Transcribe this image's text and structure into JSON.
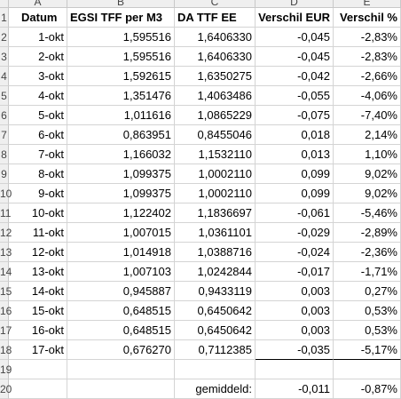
{
  "column_letters": [
    "A",
    "B",
    "C",
    "D",
    "E"
  ],
  "row_numbers": [
    "1",
    "2",
    "3",
    "4",
    "5",
    "6",
    "7",
    "8",
    "9",
    "10",
    "11",
    "12",
    "13",
    "14",
    "15",
    "16",
    "17",
    "18",
    "19",
    "20"
  ],
  "headers": {
    "datum": "Datum",
    "egsi": "EGSI TFF per M3",
    "da": "DA TTF EE",
    "eur": "Verschil EUR",
    "pct": "Verschil %"
  },
  "rows": [
    {
      "datum": "1-okt",
      "egsi": "1,595516",
      "da": "1,6406330",
      "eur": "-0,045",
      "pct": "-2,83%"
    },
    {
      "datum": "2-okt",
      "egsi": "1,595516",
      "da": "1,6406330",
      "eur": "-0,045",
      "pct": "-2,83%"
    },
    {
      "datum": "3-okt",
      "egsi": "1,592615",
      "da": "1,6350275",
      "eur": "-0,042",
      "pct": "-2,66%"
    },
    {
      "datum": "4-okt",
      "egsi": "1,351476",
      "da": "1,4063486",
      "eur": "-0,055",
      "pct": "-4,06%"
    },
    {
      "datum": "5-okt",
      "egsi": "1,011616",
      "da": "1,0865229",
      "eur": "-0,075",
      "pct": "-7,40%"
    },
    {
      "datum": "6-okt",
      "egsi": "0,863951",
      "da": "0,8455046",
      "eur": "0,018",
      "pct": "2,14%"
    },
    {
      "datum": "7-okt",
      "egsi": "1,166032",
      "da": "1,1532110",
      "eur": "0,013",
      "pct": "1,10%"
    },
    {
      "datum": "8-okt",
      "egsi": "1,099375",
      "da": "1,0002110",
      "eur": "0,099",
      "pct": "9,02%"
    },
    {
      "datum": "9-okt",
      "egsi": "1,099375",
      "da": "1,0002110",
      "eur": "0,099",
      "pct": "9,02%"
    },
    {
      "datum": "10-okt",
      "egsi": "1,122402",
      "da": "1,1836697",
      "eur": "-0,061",
      "pct": "-5,46%"
    },
    {
      "datum": "11-okt",
      "egsi": "1,007015",
      "da": "1,0361101",
      "eur": "-0,029",
      "pct": "-2,89%"
    },
    {
      "datum": "12-okt",
      "egsi": "1,014918",
      "da": "1,0388716",
      "eur": "-0,024",
      "pct": "-2,36%"
    },
    {
      "datum": "13-okt",
      "egsi": "1,007103",
      "da": "1,0242844",
      "eur": "-0,017",
      "pct": "-1,71%"
    },
    {
      "datum": "14-okt",
      "egsi": "0,945887",
      "da": "0,9433119",
      "eur": "0,003",
      "pct": "0,27%"
    },
    {
      "datum": "15-okt",
      "egsi": "0,648515",
      "da": "0,6450642",
      "eur": "0,003",
      "pct": "0,53%"
    },
    {
      "datum": "16-okt",
      "egsi": "0,648515",
      "da": "0,6450642",
      "eur": "0,003",
      "pct": "0,53%"
    },
    {
      "datum": "17-okt",
      "egsi": "0,676270",
      "da": "0,7112385",
      "eur": "-0,035",
      "pct": "-5,17%"
    }
  ],
  "summary": {
    "label": "gemiddeld:",
    "eur": "-0,011",
    "pct": "-0,87%"
  }
}
